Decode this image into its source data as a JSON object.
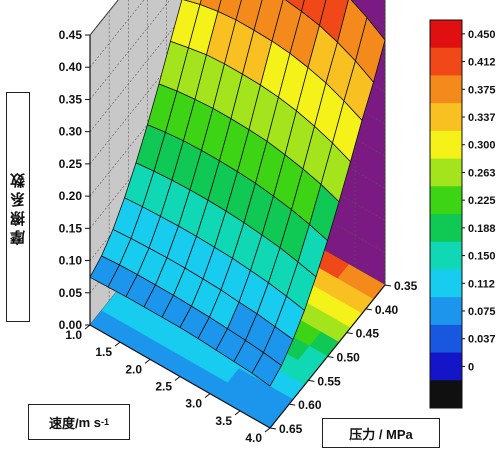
{
  "chart_data": {
    "type": "surface3d",
    "title": "",
    "xlabel": "速度/m s-1",
    "xlabel_main": "速度/",
    "xlabel_unit": "m s",
    "xlabel_sup": "-1",
    "ylabel": "压力 / MPa",
    "zlabel": "摩擦系数",
    "x_ticks": [
      "1.0",
      "1.5",
      "2.0",
      "2.5",
      "3.0",
      "3.5",
      "4.0"
    ],
    "y_ticks": [
      "0.35",
      "0.40",
      "0.45",
      "0.50",
      "0.55",
      "0.60",
      "0.65"
    ],
    "z_ticks": [
      "0.00",
      "0.05",
      "0.10",
      "0.15",
      "0.20",
      "0.25",
      "0.30",
      "0.35",
      "0.40",
      "0.45"
    ],
    "xlim": [
      1.0,
      4.0
    ],
    "ylim": [
      0.35,
      0.65
    ],
    "zlim": [
      0.0,
      0.45
    ],
    "colorbar": {
      "ticks": [
        "0.450",
        "0.412",
        "0.375",
        "0.337",
        "0.300",
        "0.263",
        "0.225",
        "0.188",
        "0.150",
        "0.112",
        "0.075",
        "0.037",
        "0"
      ],
      "colors": [
        "#e01010",
        "#f04818",
        "#f58a1c",
        "#f8c020",
        "#f4f218",
        "#a4e41c",
        "#3cd414",
        "#10c854",
        "#10d8b4",
        "#18ccf0",
        "#1c96ec",
        "#1858e0",
        "#1414c8",
        "#101010"
      ]
    },
    "x": [
      1.0,
      1.3,
      1.6,
      1.9,
      2.2,
      2.5,
      2.8,
      3.1,
      3.4,
      3.7,
      4.0
    ],
    "y": [
      0.35,
      0.38,
      0.41,
      0.44,
      0.47,
      0.5,
      0.53,
      0.56,
      0.59,
      0.62,
      0.65
    ],
    "z": [
      [
        0.41,
        0.424,
        0.432,
        0.437,
        0.438,
        0.436,
        0.432,
        0.425,
        0.414,
        0.399,
        0.38
      ],
      [
        0.367,
        0.377,
        0.384,
        0.387,
        0.388,
        0.387,
        0.383,
        0.377,
        0.367,
        0.354,
        0.337
      ],
      [
        0.328,
        0.336,
        0.341,
        0.344,
        0.344,
        0.343,
        0.34,
        0.334,
        0.326,
        0.314,
        0.3
      ],
      [
        0.285,
        0.291,
        0.296,
        0.298,
        0.298,
        0.297,
        0.294,
        0.289,
        0.281,
        0.271,
        0.258
      ],
      [
        0.241,
        0.246,
        0.249,
        0.251,
        0.251,
        0.25,
        0.248,
        0.243,
        0.237,
        0.229,
        0.218
      ],
      [
        0.2,
        0.204,
        0.207,
        0.208,
        0.208,
        0.207,
        0.205,
        0.201,
        0.196,
        0.189,
        0.18
      ],
      [
        0.163,
        0.166,
        0.168,
        0.169,
        0.169,
        0.168,
        0.166,
        0.163,
        0.159,
        0.153,
        0.146
      ],
      [
        0.131,
        0.133,
        0.134,
        0.135,
        0.135,
        0.134,
        0.133,
        0.13,
        0.127,
        0.122,
        0.116
      ],
      [
        0.104,
        0.106,
        0.107,
        0.108,
        0.108,
        0.107,
        0.106,
        0.103,
        0.101,
        0.097,
        0.093
      ],
      [
        0.085,
        0.087,
        0.088,
        0.088,
        0.088,
        0.087,
        0.086,
        0.084,
        0.082,
        0.079,
        0.075
      ],
      [
        0.074,
        0.075,
        0.076,
        0.076,
        0.076,
        0.076,
        0.075,
        0.073,
        0.071,
        0.069,
        0.065
      ]
    ],
    "grid": true,
    "legend": "colorbar-right"
  }
}
